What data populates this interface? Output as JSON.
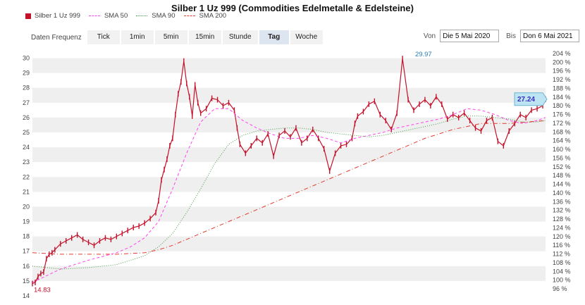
{
  "title": "Silber 1 Uz 999 (Commodities Edelmetalle & Edelsteine)",
  "legend": [
    {
      "name": "Silber 1 Uz 999",
      "color": "#c4112a",
      "style": "box"
    },
    {
      "name": "SMA 50",
      "color": "#ff44ee",
      "style": "dashed"
    },
    {
      "name": "SMA 90",
      "color": "#449944",
      "style": "dotted"
    },
    {
      "name": "SMA 200",
      "color": "#e33a2e",
      "style": "dashdot"
    }
  ],
  "toolbar": {
    "label": "Daten Frequenz",
    "tabs": [
      {
        "label": "Tick",
        "active": false
      },
      {
        "label": "1min",
        "active": false
      },
      {
        "label": "5min",
        "active": false
      },
      {
        "label": "15min",
        "active": false
      },
      {
        "label": "Stunde",
        "active": false
      },
      {
        "label": "Tag",
        "active": true
      },
      {
        "label": "Woche",
        "active": false
      }
    ]
  },
  "date_range": {
    "from_label": "Von",
    "from_value": "Die 5 Mai 2020",
    "to_label": "Bis",
    "to_value": "Don 6 Mai 2021"
  },
  "chart_data": {
    "type": "line",
    "title": "Silber 1 Uz 999 (Commodities Edelmetalle & Edelsteine)",
    "x_range": [
      "2020-05-05",
      "2021-05-06"
    ],
    "left_axis": {
      "ticks": [
        14,
        15,
        16,
        17,
        18,
        19,
        20,
        21,
        22,
        23,
        24,
        25,
        26,
        27,
        28,
        29,
        30
      ],
      "ylim": [
        14,
        30.5
      ]
    },
    "right_axis": {
      "ticks": [
        "96 %",
        "100 %",
        "104 %",
        "108 %",
        "112 %",
        "116 %",
        "120 %",
        "124 %",
        "128 %",
        "132 %",
        "136 %",
        "140 %",
        "144 %",
        "148 %",
        "152 %",
        "156 %",
        "160 %",
        "164 %",
        "168 %",
        "172 %",
        "176 %",
        "180 %",
        "184 %",
        "188 %",
        "192 %",
        "196 %",
        "200 %",
        "204 %"
      ]
    },
    "grid": "alternating horizontal bands",
    "annotations": {
      "min_label": "14.83",
      "max_label": "29.97",
      "last_label": "27.24"
    },
    "series": [
      {
        "name": "Silber 1 Uz 999",
        "color": "#c4112a",
        "x": [
          0,
          2,
          4,
          6,
          8,
          10,
          12,
          14,
          16,
          20,
          24,
          28,
          32,
          36,
          40,
          44,
          48,
          52,
          56,
          60,
          64,
          68,
          72,
          76,
          80,
          84,
          88,
          90,
          92,
          94,
          96,
          98,
          100,
          102,
          104,
          106,
          108,
          110,
          112,
          114,
          116,
          118,
          120,
          124,
          128,
          132,
          136,
          140,
          144,
          146,
          148,
          152,
          156,
          160,
          164,
          168,
          172,
          176,
          180,
          184,
          188,
          192,
          196,
          200,
          204,
          208,
          212,
          216,
          220,
          224,
          228,
          230,
          232,
          236,
          240,
          244,
          248,
          252,
          256,
          260,
          264,
          268,
          272,
          276,
          280,
          284,
          288,
          292,
          296,
          300,
          304,
          308,
          312,
          316,
          320,
          324,
          328,
          332,
          336,
          340,
          344,
          348,
          352,
          356,
          360,
          364,
          366
        ],
        "y": [
          14.83,
          14.9,
          15.3,
          15.5,
          15.6,
          16.5,
          16.8,
          16.9,
          17.1,
          17.5,
          17.7,
          17.9,
          18.1,
          17.8,
          17.6,
          17.4,
          17.7,
          17.9,
          17.8,
          18.0,
          18.2,
          18.4,
          18.6,
          18.7,
          18.9,
          19.2,
          19.6,
          20.4,
          21.8,
          22.5,
          23.2,
          24.1,
          24.6,
          26.2,
          27.6,
          28.4,
          29.8,
          28.3,
          27.4,
          26.1,
          28.2,
          27.0,
          26.3,
          26.6,
          27.3,
          27.2,
          26.8,
          27.0,
          26.5,
          25.3,
          24.2,
          23.6,
          24.1,
          24.6,
          24.3,
          24.9,
          23.4,
          24.8,
          25.1,
          24.7,
          25.3,
          24.3,
          24.6,
          25.2,
          24.6,
          23.9,
          22.4,
          23.6,
          24.1,
          24.2,
          24.6,
          25.6,
          26.1,
          26.4,
          26.9,
          27.1,
          26.2,
          25.8,
          25.2,
          26.3,
          29.97,
          27.2,
          26.5,
          26.9,
          27.2,
          26.8,
          27.4,
          26.9,
          25.9,
          26.2,
          26.0,
          26.3,
          25.8,
          25.3,
          25.1,
          25.8,
          26.0,
          24.4,
          24.1,
          25.1,
          25.6,
          26.2,
          26.0,
          26.5,
          26.6,
          26.8,
          27.24
        ]
      },
      {
        "name": "SMA 50",
        "color": "#ff44ee",
        "x": [
          0,
          20,
          40,
          60,
          70,
          80,
          90,
          100,
          110,
          120,
          130,
          140,
          150,
          160,
          170,
          180,
          190,
          200,
          210,
          220,
          230,
          240,
          250,
          260,
          270,
          280,
          290,
          300,
          310,
          320,
          330,
          340,
          350,
          360,
          366
        ],
        "y": [
          14.9,
          15.8,
          16.4,
          16.9,
          17.3,
          17.9,
          19.0,
          21.2,
          23.6,
          25.7,
          26.6,
          26.6,
          25.8,
          25.3,
          24.9,
          24.6,
          24.6,
          24.8,
          24.6,
          24.3,
          24.6,
          24.8,
          25.0,
          25.3,
          25.5,
          25.7,
          25.9,
          26.2,
          26.6,
          26.5,
          26.2,
          25.8,
          25.6,
          25.8,
          26.0
        ]
      },
      {
        "name": "SMA 90",
        "color": "#449944",
        "x": [
          0,
          20,
          40,
          60,
          80,
          90,
          100,
          110,
          120,
          130,
          140,
          150,
          160,
          170,
          180,
          190,
          200,
          210,
          220,
          230,
          240,
          250,
          260,
          270,
          280,
          290,
          300,
          310,
          320,
          330,
          340,
          350,
          360,
          366
        ],
        "y": [
          16.0,
          15.8,
          15.9,
          16.1,
          16.7,
          17.3,
          18.2,
          19.6,
          21.2,
          22.9,
          24.2,
          24.8,
          25.1,
          25.2,
          25.3,
          25.3,
          25.2,
          25.0,
          24.9,
          24.8,
          24.7,
          24.8,
          25.0,
          25.2,
          25.4,
          25.6,
          25.9,
          26.1,
          26.1,
          26.0,
          25.9,
          25.7,
          25.7,
          25.8
        ]
      },
      {
        "name": "SMA 200",
        "color": "#e33a2e",
        "x": [
          0,
          20,
          40,
          60,
          80,
          90,
          100,
          110,
          120,
          140,
          160,
          180,
          200,
          220,
          240,
          260,
          280,
          300,
          320,
          340,
          366
        ],
        "y": [
          16.9,
          16.8,
          16.8,
          16.8,
          16.9,
          17.1,
          17.4,
          17.8,
          18.2,
          19.0,
          19.8,
          20.6,
          21.4,
          22.2,
          23.0,
          23.8,
          24.6,
          25.2,
          25.6,
          25.6,
          25.8
        ]
      }
    ]
  }
}
